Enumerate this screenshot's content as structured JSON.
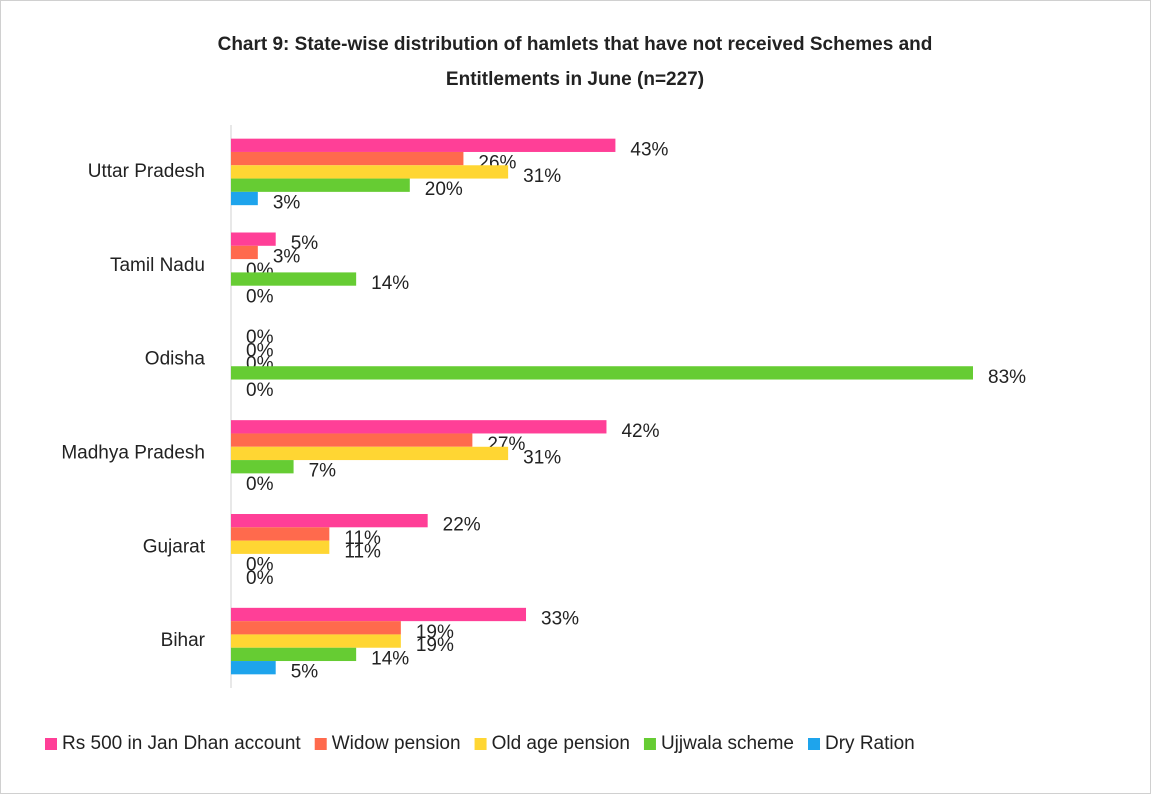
{
  "chart_data": {
    "type": "hbar",
    "title": [
      "Chart 9: State-wise distribution of hamlets that have not received Schemes and",
      "Entitlements in June (n=227)"
    ],
    "categories": [
      "Uttar Pradesh",
      "Tamil Nadu",
      "Odisha",
      "Madhya Pradesh",
      "Gujarat",
      "Bihar"
    ],
    "series": [
      {
        "name": "Rs 500 in Jan Dhan account",
        "color": "#ff3f97",
        "values": [
          43,
          5,
          0,
          42,
          22,
          33
        ],
        "value_labels": [
          "43%",
          "5%",
          "0%",
          "42%",
          "22%",
          "33%"
        ]
      },
      {
        "name": "Widow pension",
        "color": "#ff6a4d",
        "values": [
          26,
          3,
          0,
          27,
          11,
          19
        ],
        "value_labels": [
          "26%",
          "3%",
          "0%",
          "27%",
          "11%",
          "19%"
        ]
      },
      {
        "name": "Old age pension",
        "color": "#ffd633",
        "values": [
          31,
          0,
          0,
          31,
          11,
          19
        ],
        "value_labels": [
          "31%",
          "0%",
          "0%",
          "31%",
          "11%",
          "19%"
        ]
      },
      {
        "name": "Ujjwala scheme",
        "color": "#66cc33",
        "values": [
          20,
          14,
          83,
          7,
          0,
          14
        ],
        "value_labels": [
          "20%",
          "14%",
          "83%",
          "7%",
          "0%",
          "14%"
        ]
      },
      {
        "name": "Dry Ration",
        "color": "#1ea4ec",
        "values": [
          3,
          0,
          0,
          0,
          0,
          5
        ],
        "value_labels": [
          "3%",
          "0%",
          "0%",
          "0%",
          "0%",
          "5%"
        ]
      }
    ],
    "legend": "bottom"
  }
}
